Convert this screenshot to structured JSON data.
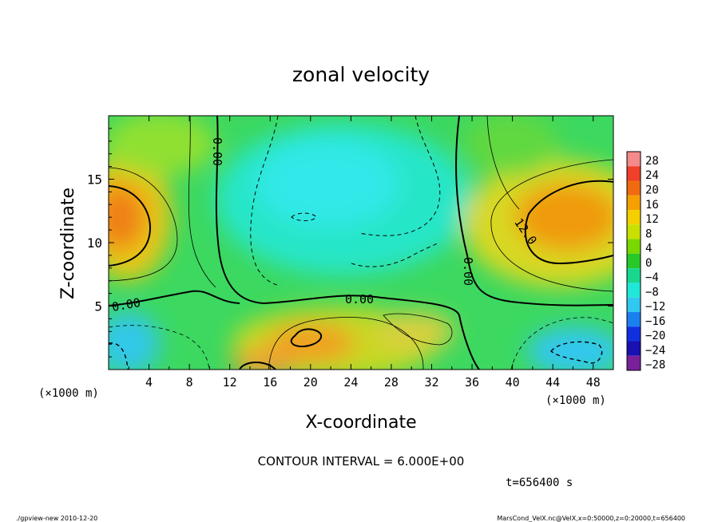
{
  "chart_data": {
    "type": "heatmap",
    "title": "zonal velocity",
    "xlabel": "X-coordinate",
    "ylabel": "Z-coordinate",
    "x_unit": "(×1000 m)",
    "y_unit": "(×1000 m)",
    "xlim": [
      0,
      50
    ],
    "ylim": [
      0,
      20
    ],
    "x_ticks": [
      "4",
      "8",
      "12",
      "16",
      "20",
      "24",
      "28",
      "32",
      "36",
      "40",
      "44",
      "48"
    ],
    "y_ticks": [
      "5",
      "10",
      "15"
    ],
    "contour_interval_text": "CONTOUR INTERVAL = 6.000E+00",
    "contour_labels": [
      "0.00",
      "0.00",
      "0.00",
      "0.00",
      "12.0"
    ],
    "colorbar": {
      "levels": [
        "28",
        "24",
        "20",
        "16",
        "12",
        "8",
        "4",
        "0",
        "−4",
        "−8",
        "−12",
        "−16",
        "−20",
        "−24",
        "−28"
      ],
      "colors": [
        "#f48a8a",
        "#f0402a",
        "#f06a10",
        "#f5a000",
        "#f5d000",
        "#c8e000",
        "#78d800",
        "#28c828",
        "#18d890",
        "#20e8d8",
        "#30c8f0",
        "#1a80f0",
        "#1030e0",
        "#1810b0",
        "#7a209a"
      ]
    },
    "timestamp": "t=656400 s",
    "footer_left": "./gpview-new  2010-12-20",
    "footer_right": "MarsCond_VelX.nc@VelX,x=0:50000,z=0:20000,t=656400"
  }
}
